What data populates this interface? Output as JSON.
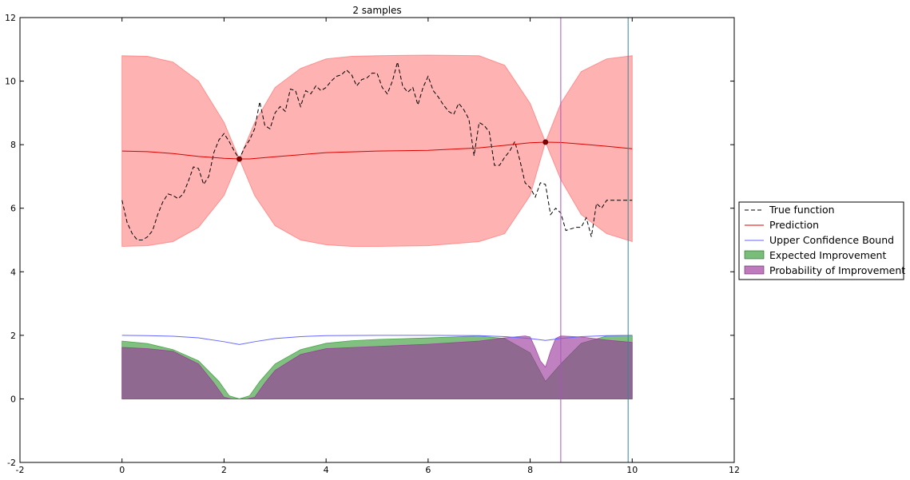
{
  "chart_data": {
    "type": "line",
    "title": "2 samples",
    "xlabel": "",
    "ylabel": "",
    "xlim": [
      -2,
      12
    ],
    "ylim": [
      -2,
      12
    ],
    "xticks": [
      -2,
      0,
      2,
      4,
      6,
      8,
      10,
      12
    ],
    "yticks": [
      -2,
      0,
      2,
      4,
      6,
      8,
      10,
      12
    ],
    "grid": false,
    "legend_position": "outside-right",
    "series": [
      {
        "name": "True function",
        "style": "dashed",
        "color": "#000000",
        "x": [
          0,
          0.1,
          0.2,
          0.3,
          0.4,
          0.5,
          0.6,
          0.7,
          0.8,
          0.9,
          1.0,
          1.1,
          1.2,
          1.3,
          1.4,
          1.5,
          1.6,
          1.7,
          1.8,
          1.9,
          2.0,
          2.1,
          2.2,
          2.3,
          2.4,
          2.5,
          2.6,
          2.7,
          2.8,
          2.9,
          3.0,
          3.1,
          3.2,
          3.3,
          3.4,
          3.5,
          3.6,
          3.7,
          3.8,
          3.9,
          4.0,
          4.1,
          4.2,
          4.3,
          4.4,
          4.5,
          4.6,
          4.7,
          4.8,
          4.9,
          5.0,
          5.1,
          5.2,
          5.3,
          5.4,
          5.5,
          5.6,
          5.7,
          5.8,
          5.9,
          6.0,
          6.1,
          6.2,
          6.3,
          6.4,
          6.5,
          6.6,
          6.7,
          6.8,
          6.9,
          7.0,
          7.1,
          7.2,
          7.3,
          7.4,
          7.5,
          7.6,
          7.7,
          7.8,
          7.9,
          8.0,
          8.1,
          8.2,
          8.3,
          8.4,
          8.5,
          8.6,
          8.7,
          8.8,
          8.9,
          9.0,
          9.1,
          9.2,
          9.3,
          9.4,
          9.5,
          9.6,
          9.7,
          9.8,
          9.9,
          10.0
        ],
        "y": [
          6.25,
          5.55,
          5.2,
          5.0,
          5.0,
          5.1,
          5.3,
          5.8,
          6.2,
          6.45,
          6.4,
          6.3,
          6.45,
          6.85,
          7.3,
          7.25,
          6.75,
          7.0,
          7.75,
          8.15,
          8.35,
          8.1,
          7.8,
          7.55,
          7.9,
          8.15,
          8.5,
          9.35,
          8.6,
          8.5,
          9.0,
          9.2,
          9.05,
          9.75,
          9.7,
          9.2,
          9.7,
          9.6,
          9.85,
          9.7,
          9.8,
          10.0,
          10.15,
          10.2,
          10.35,
          10.2,
          9.85,
          10.05,
          10.1,
          10.25,
          10.25,
          9.8,
          9.6,
          10.0,
          10.6,
          9.85,
          9.65,
          9.8,
          9.25,
          9.8,
          10.15,
          9.7,
          9.5,
          9.25,
          9.05,
          8.95,
          9.3,
          9.1,
          8.8,
          7.65,
          8.7,
          8.6,
          8.4,
          7.35,
          7.35,
          7.6,
          7.8,
          8.1,
          7.5,
          6.8,
          6.65,
          6.35,
          6.8,
          6.75,
          5.8,
          6.0,
          5.85,
          5.3,
          5.35,
          5.4,
          5.4,
          5.7,
          5.1,
          6.15,
          6.0,
          6.25,
          6.25,
          6.25,
          6.25,
          6.25,
          6.25
        ]
      },
      {
        "name": "Prediction",
        "style": "solid",
        "color": "#dd0000",
        "x": [
          0,
          0.5,
          1.0,
          1.5,
          2.0,
          2.3,
          2.5,
          3.0,
          4.0,
          5.0,
          6.0,
          7.0,
          7.5,
          8.0,
          8.3,
          8.6,
          9.0,
          9.5,
          10.0
        ],
        "y": [
          7.8,
          7.78,
          7.72,
          7.63,
          7.57,
          7.55,
          7.55,
          7.62,
          7.75,
          7.8,
          7.82,
          7.9,
          7.98,
          8.06,
          8.08,
          8.07,
          8.02,
          7.95,
          7.87
        ]
      },
      {
        "name": "Upper Confidence Bound",
        "style": "solid",
        "color": "#6666ff",
        "x": [
          0,
          0.5,
          1.0,
          1.5,
          2.0,
          2.3,
          2.6,
          3.0,
          3.5,
          4.0,
          5.0,
          6.0,
          7.0,
          7.5,
          8.0,
          8.3,
          8.6,
          9.0,
          9.5,
          10.0
        ],
        "y": [
          2.0,
          1.99,
          1.97,
          1.92,
          1.8,
          1.71,
          1.8,
          1.9,
          1.96,
          1.99,
          2.0,
          2.0,
          1.99,
          1.96,
          1.9,
          1.84,
          1.9,
          1.96,
          1.99,
          2.0
        ]
      }
    ],
    "confidence_band": {
      "color": "#ff6666",
      "x": [
        0,
        0.5,
        1.0,
        1.5,
        2.0,
        2.3,
        2.6,
        3.0,
        3.5,
        4.0,
        4.5,
        5.0,
        6.0,
        7.0,
        7.5,
        8.0,
        8.3,
        8.6,
        9.0,
        9.5,
        10.0
      ],
      "upper": [
        10.8,
        10.78,
        10.6,
        10.0,
        8.7,
        7.55,
        8.7,
        9.8,
        10.4,
        10.7,
        10.78,
        10.8,
        10.82,
        10.8,
        10.5,
        9.3,
        8.08,
        9.3,
        10.3,
        10.7,
        10.8
      ],
      "lower": [
        4.8,
        4.82,
        4.95,
        5.4,
        6.4,
        7.55,
        6.4,
        5.45,
        5.0,
        4.85,
        4.8,
        4.8,
        4.82,
        4.95,
        5.2,
        6.4,
        8.08,
        6.9,
        5.8,
        5.2,
        4.95
      ]
    },
    "areas": [
      {
        "name": "Expected Improvement",
        "color": "#339933",
        "x": [
          0,
          0.5,
          1.0,
          1.5,
          1.9,
          2.1,
          2.3,
          2.5,
          2.7,
          3.0,
          3.5,
          4.0,
          4.5,
          5.0,
          6.0,
          7.0,
          7.5,
          8.0,
          8.3,
          8.6,
          9.0,
          9.5,
          10.0
        ],
        "y": [
          1.82,
          1.74,
          1.55,
          1.2,
          0.55,
          0.1,
          0.0,
          0.1,
          0.55,
          1.1,
          1.55,
          1.75,
          1.83,
          1.87,
          1.92,
          1.98,
          1.9,
          1.45,
          0.55,
          1.1,
          1.75,
          1.98,
          2.0
        ]
      },
      {
        "name": "Probability of Improvement",
        "color": "#993399",
        "x": [
          0,
          0.5,
          1.0,
          1.5,
          1.8,
          2.0,
          2.15,
          2.3,
          2.45,
          2.6,
          2.8,
          3.0,
          3.5,
          4.0,
          5.0,
          6.0,
          7.0,
          7.5,
          7.9,
          8.0,
          8.1,
          8.2,
          8.3,
          8.4,
          8.5,
          8.6,
          9.0,
          9.5,
          10.0
        ],
        "y": [
          1.62,
          1.58,
          1.5,
          1.1,
          0.5,
          0.05,
          0.0,
          0.0,
          0.0,
          0.05,
          0.5,
          0.9,
          1.4,
          1.58,
          1.65,
          1.72,
          1.82,
          1.92,
          1.98,
          1.95,
          1.6,
          1.2,
          1.0,
          1.5,
          1.9,
          1.98,
          1.95,
          1.85,
          1.78
        ]
      }
    ],
    "samples": [
      {
        "x": 2.3,
        "y": 7.55
      },
      {
        "x": 8.3,
        "y": 8.08
      }
    ],
    "vertical_lines": [
      {
        "x": 8.6,
        "color": "#aa55bb"
      },
      {
        "x": 9.92,
        "color": "#338899"
      }
    ]
  }
}
